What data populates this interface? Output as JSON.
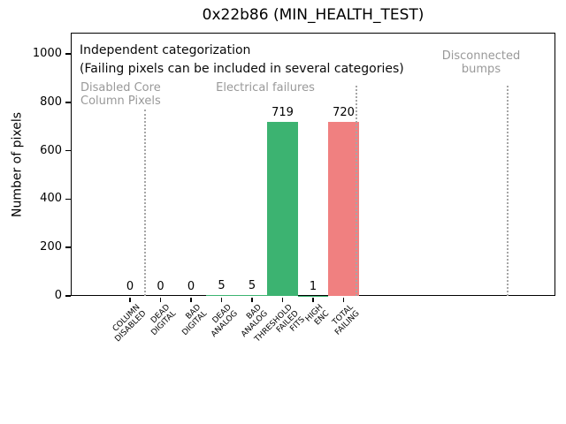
{
  "chart_data": {
    "type": "bar",
    "title": "0x22b86 (MIN_HEALTH_TEST)",
    "xlabel": "",
    "ylabel": "Number of pixels",
    "ylim": [
      0,
      1090
    ],
    "yticks": [
      0,
      200,
      400,
      600,
      800,
      1000
    ],
    "grid": false,
    "legend": false,
    "categories": [
      "COLUMN\nDISABLED",
      "DEAD\nDIGITAL",
      "BAD\nDIGITAL",
      "DEAD\nANALOG",
      "BAD\nANALOG",
      "THRESHOLD\nFAILED\nFITS",
      "HIGH\nENC",
      "TOTAL\nFAILING"
    ],
    "values": [
      0,
      0,
      0,
      5,
      5,
      719,
      1,
      720
    ],
    "bar_value_labels": [
      "0",
      "0",
      "0",
      "5",
      "5",
      "719",
      "1",
      "720"
    ],
    "bar_colors": [
      "#3cb371",
      "#3cb371",
      "#3cb371",
      "#3cb371",
      "#3cb371",
      "#3cb371",
      "#3cb371",
      "#f08080"
    ],
    "annotations": {
      "note_line1": "Independent categorization",
      "note_line2": "(Failing pixels can be included in several categories)",
      "regions": [
        {
          "lines": [
            "Disabled Core",
            "Column Pixels"
          ]
        },
        {
          "lines": [
            "Electrical failures"
          ]
        },
        {
          "lines": [
            "Disconnected",
            "bumps"
          ]
        }
      ]
    },
    "colors": {
      "bar_green": "#3cb371",
      "bar_total_red": "#f08080",
      "annotation_gray": "#999999",
      "divider_gray": "#a6a6a6",
      "axis": "#000000",
      "background": "#ffffff"
    }
  }
}
